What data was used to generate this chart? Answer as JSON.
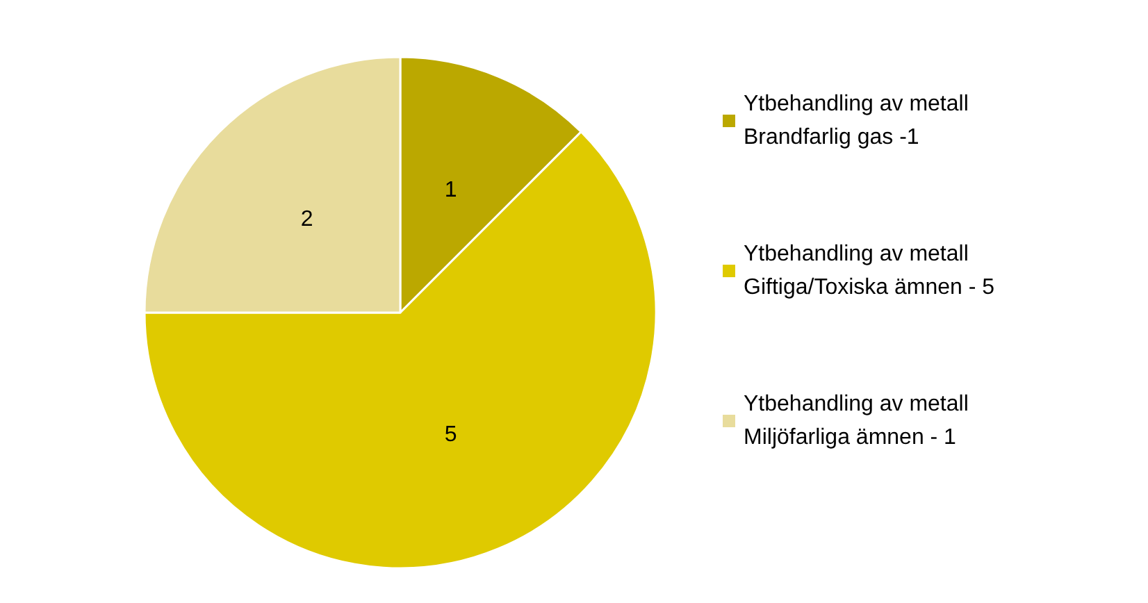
{
  "chart_data": {
    "type": "pie",
    "categories": [
      "Ytbehandling av metall\nBrandfarlig gas -1",
      "Ytbehandling av metall\nGiftiga/Toxiska ämnen - 5",
      "Ytbehandling av metall\nMiljöfarliga ämnen - 1"
    ],
    "values": [
      1,
      5,
      2
    ],
    "colors": [
      "#bba800",
      "#dfca00",
      "#e8dc9c"
    ],
    "data_labels": true,
    "legend": "right"
  }
}
